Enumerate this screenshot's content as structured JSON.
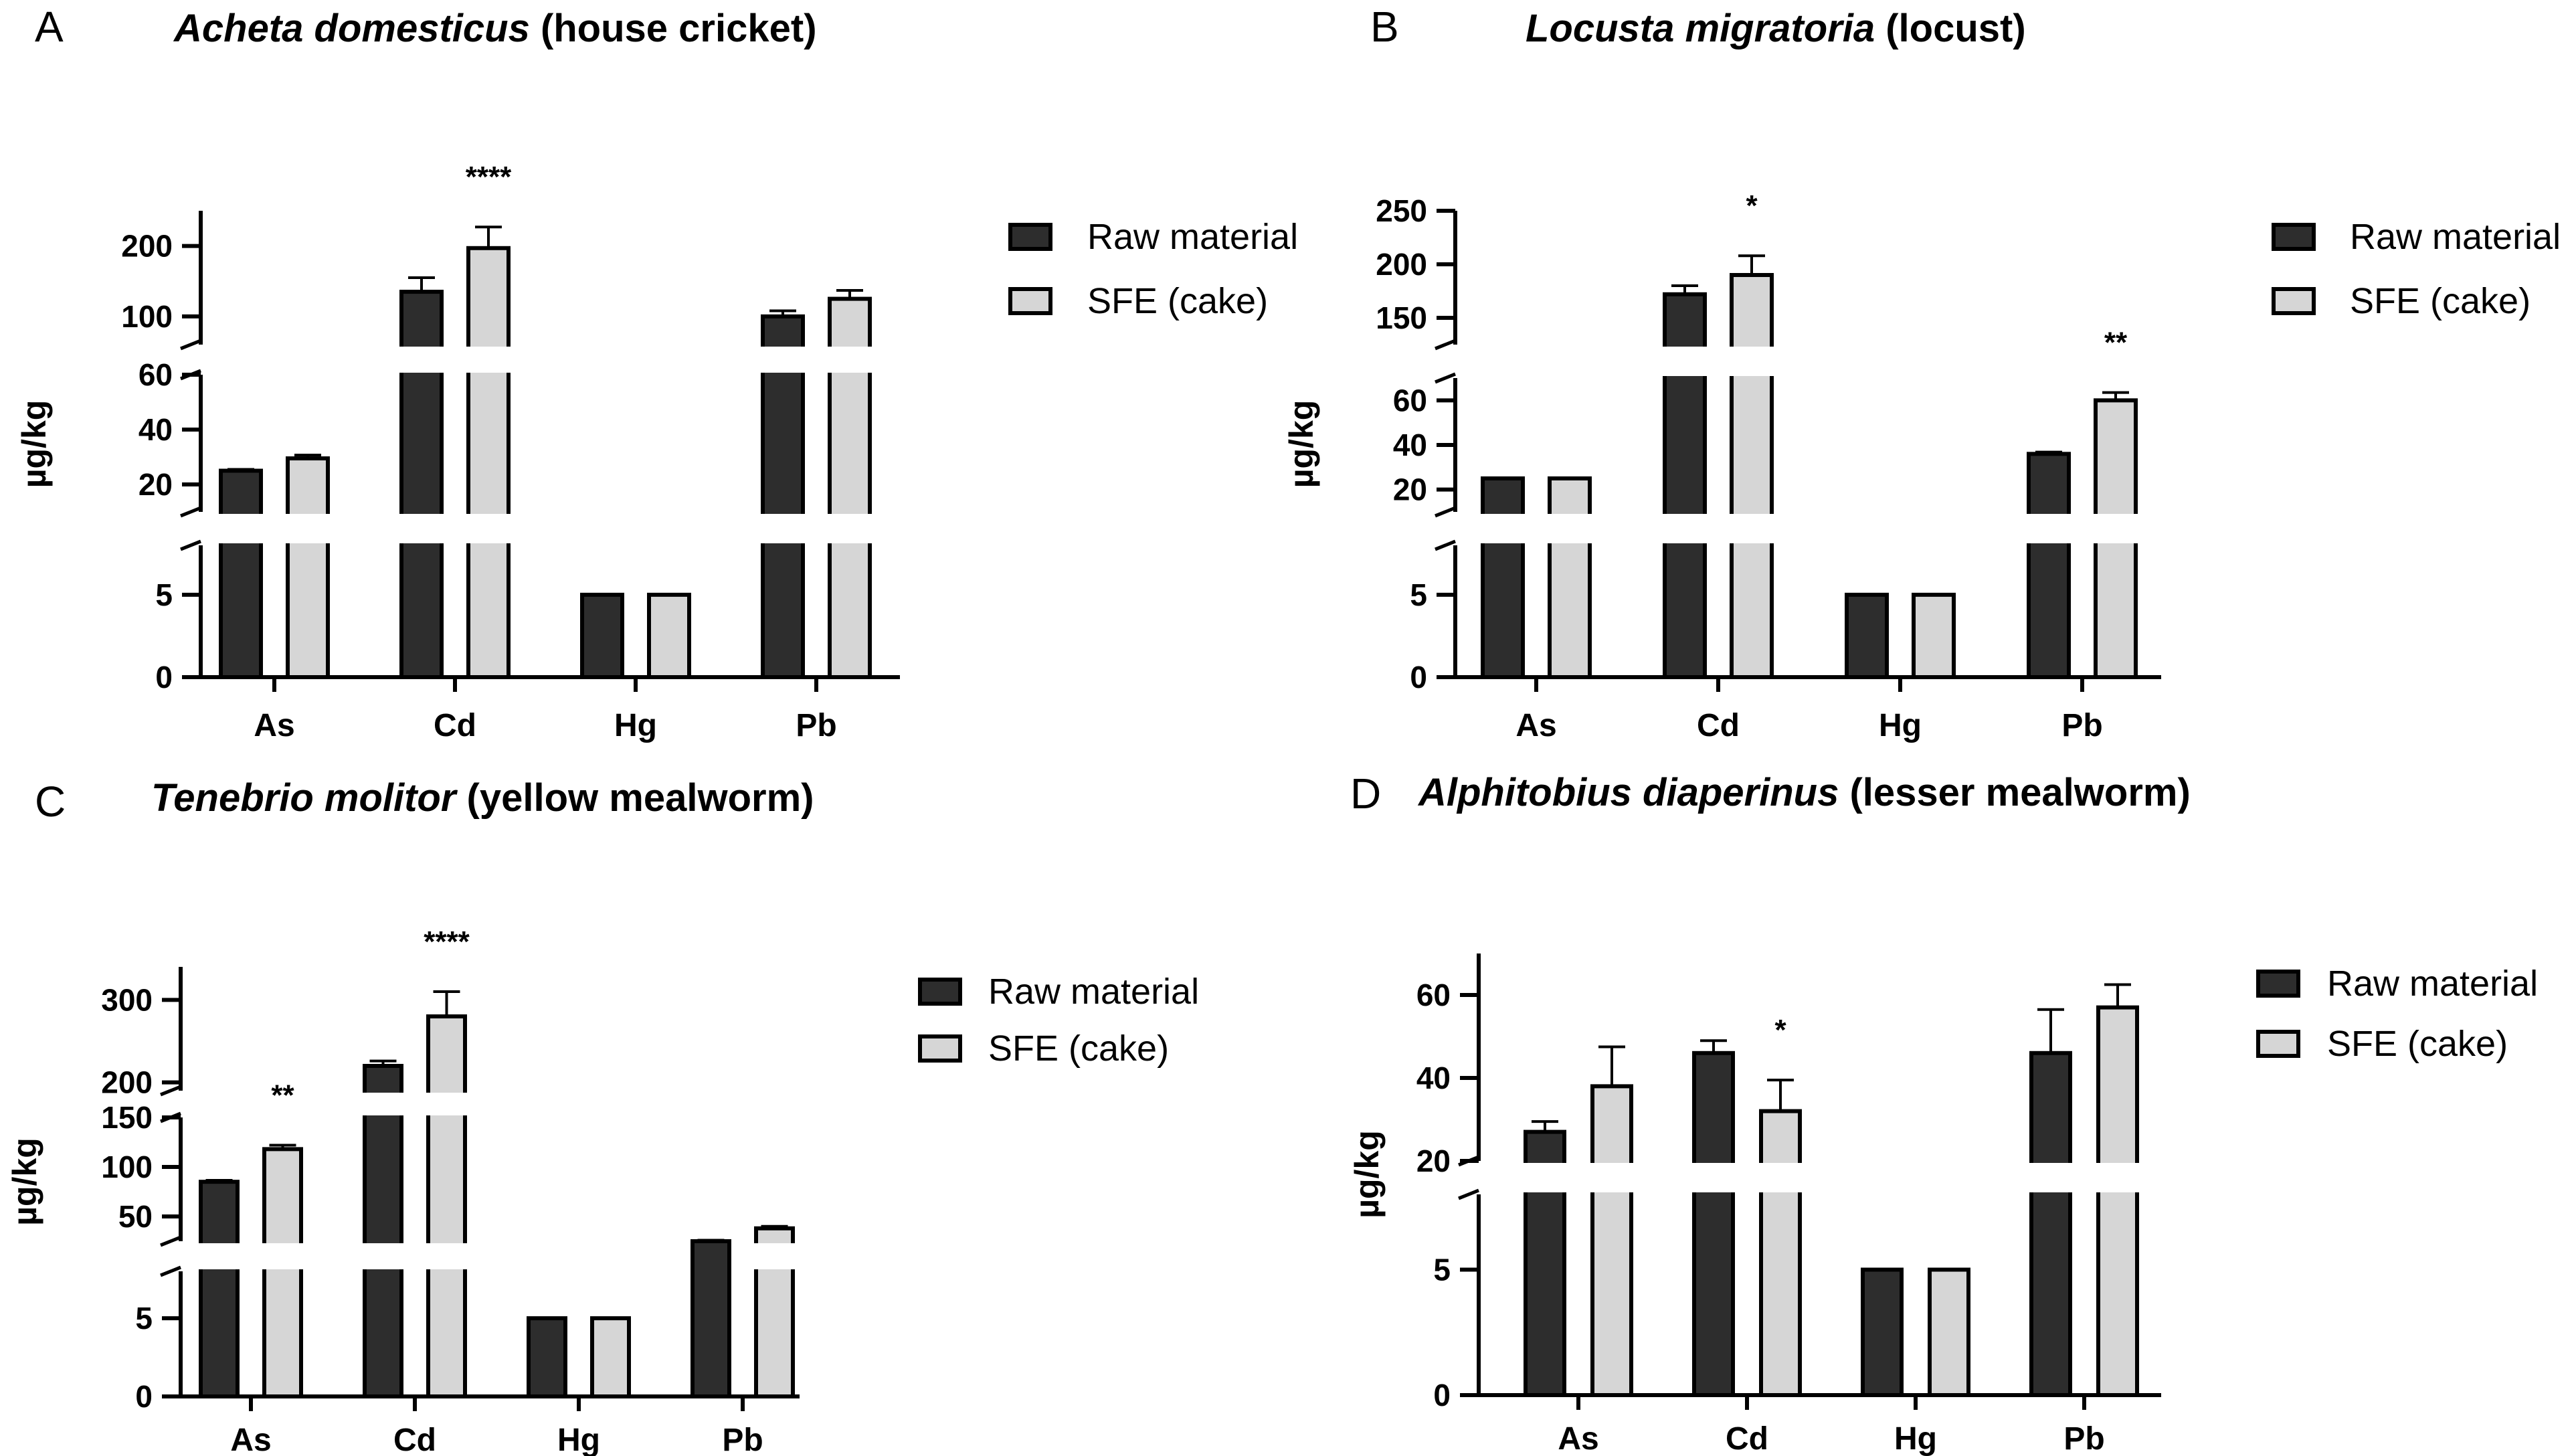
{
  "legend": {
    "raw_label": "Raw material",
    "sfe_label": "SFE (cake)",
    "raw_color": "#2d2d2d",
    "sfe_color": "#d6d6d6"
  },
  "y_axis_label": "µg/kg",
  "chart_data": [
    {
      "panel": "A",
      "type": "bar",
      "title_italic": "Acheta domesticus",
      "title_rest": " (house cricket)",
      "xlabel": "",
      "ylabel": "µg/kg",
      "categories": [
        "As",
        "Cd",
        "Hg",
        "Pb"
      ],
      "series": [
        {
          "name": "Raw material",
          "values": [
            25,
            135,
            5,
            100
          ],
          "errors": [
            0.5,
            20,
            0,
            8
          ]
        },
        {
          "name": "SFE (cake)",
          "values": [
            29.5,
            197,
            5,
            125
          ],
          "errors": [
            1.2,
            30,
            0,
            12
          ]
        }
      ],
      "significance": [
        "",
        "****",
        "",
        ""
      ],
      "axis_segments": [
        {
          "range": [
            0,
            8
          ],
          "ticks": [
            0,
            5
          ]
        },
        {
          "range": [
            10,
            60
          ],
          "ticks": [
            20,
            40,
            60
          ]
        },
        {
          "range": [
            60,
            250
          ],
          "ticks": [
            100,
            200
          ]
        }
      ],
      "legend_position": "top-right"
    },
    {
      "panel": "B",
      "type": "bar",
      "title_italic": "Locusta migratoria",
      "title_rest": " (locust)",
      "xlabel": "",
      "ylabel": "µg/kg",
      "categories": [
        "As",
        "Cd",
        "Hg",
        "Pb"
      ],
      "series": [
        {
          "name": "Raw material",
          "values": [
            25,
            172,
            5,
            36
          ],
          "errors": [
            0.3,
            8,
            0,
            0.8
          ]
        },
        {
          "name": "SFE (cake)",
          "values": [
            25,
            190,
            5,
            60
          ],
          "errors": [
            0.3,
            18,
            0,
            3.5
          ]
        }
      ],
      "significance": [
        "",
        "*",
        "",
        "**"
      ],
      "axis_segments": [
        {
          "range": [
            0,
            8
          ],
          "ticks": [
            0,
            5
          ]
        },
        {
          "range": [
            10,
            70
          ],
          "ticks": [
            20,
            40,
            60
          ]
        },
        {
          "range": [
            125,
            250
          ],
          "ticks": [
            150,
            200,
            250
          ]
        }
      ],
      "legend_position": "top-right"
    },
    {
      "panel": "C",
      "type": "bar",
      "title_italic": "Tenebrio molitor",
      "title_rest": " (yellow mealworm)",
      "xlabel": "",
      "ylabel": "µg/kg",
      "categories": [
        "As",
        "Cd",
        "Hg",
        "Pb"
      ],
      "series": [
        {
          "name": "Raw material",
          "values": [
            85,
            220,
            5,
            23
          ],
          "errors": [
            1.5,
            6,
            0,
            3
          ]
        },
        {
          "name": "SFE (cake)",
          "values": [
            118,
            280,
            5,
            38
          ],
          "errors": [
            4,
            30,
            0,
            2
          ]
        }
      ],
      "significance": [
        "**",
        "****",
        "",
        ""
      ],
      "axis_segments": [
        {
          "range": [
            0,
            8
          ],
          "ticks": [
            0,
            5
          ]
        },
        {
          "range": [
            25,
            150
          ],
          "ticks": [
            50,
            100,
            150
          ]
        },
        {
          "range": [
            190,
            340
          ],
          "ticks": [
            200,
            300
          ]
        }
      ],
      "legend_position": "top-right"
    },
    {
      "panel": "D",
      "type": "bar",
      "title_italic": "Alphitobius diaperinus",
      "title_rest": " (lesser mealworm)",
      "xlabel": "",
      "ylabel": "µg/kg",
      "categories": [
        "As",
        "Cd",
        "Hg",
        "Pb"
      ],
      "series": [
        {
          "name": "Raw material",
          "values": [
            27,
            46,
            5,
            46
          ],
          "errors": [
            2.5,
            3,
            0,
            10.5
          ]
        },
        {
          "name": "SFE (cake)",
          "values": [
            38,
            32,
            5,
            57
          ],
          "errors": [
            9.5,
            7.5,
            0,
            5.5
          ]
        }
      ],
      "significance": [
        "",
        "*",
        "",
        ""
      ],
      "axis_segments": [
        {
          "range": [
            0,
            8
          ],
          "ticks": [
            0,
            5
          ]
        },
        {
          "range": [
            20,
            70
          ],
          "ticks": [
            20,
            40,
            60
          ]
        }
      ],
      "legend_position": "top-right"
    }
  ]
}
